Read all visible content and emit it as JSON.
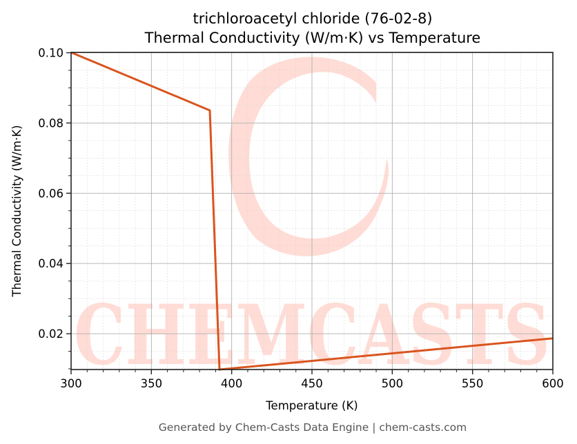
{
  "chart_data": {
    "type": "line",
    "title": "trichloroacetyl chloride (76-02-8)",
    "subtitle": "Thermal Conductivity (W/m·K) vs Temperature",
    "xlabel": "Temperature (K)",
    "ylabel": "Thermal Conductivity (W/m·K)",
    "xlim": [
      300,
      600
    ],
    "ylim": [
      0.0098,
      0.1001
    ],
    "xticks": [
      300,
      350,
      400,
      450,
      500,
      550,
      600
    ],
    "xtick_labels": [
      "300",
      "350",
      "400",
      "450",
      "500",
      "550",
      "600"
    ],
    "yticks": [
      0.02,
      0.04,
      0.06,
      0.08,
      0.1
    ],
    "ytick_labels": [
      "0.02",
      "0.04",
      "0.06",
      "0.08",
      "0.10"
    ],
    "grid": true,
    "minor_grid": true,
    "legend": null,
    "series": [
      {
        "name": "Thermal Conductivity",
        "color": "#d9541e",
        "x": [
          300,
          386.4,
          392.4,
          600
        ],
        "y": [
          0.1001,
          0.0836,
          0.0098,
          0.0187
        ]
      }
    ]
  },
  "watermark": {
    "text": "CHEMCASTS",
    "color": "#ffdcd5"
  },
  "footer": {
    "text": "Generated by Chem-Casts Data Engine | chem-casts.com"
  }
}
